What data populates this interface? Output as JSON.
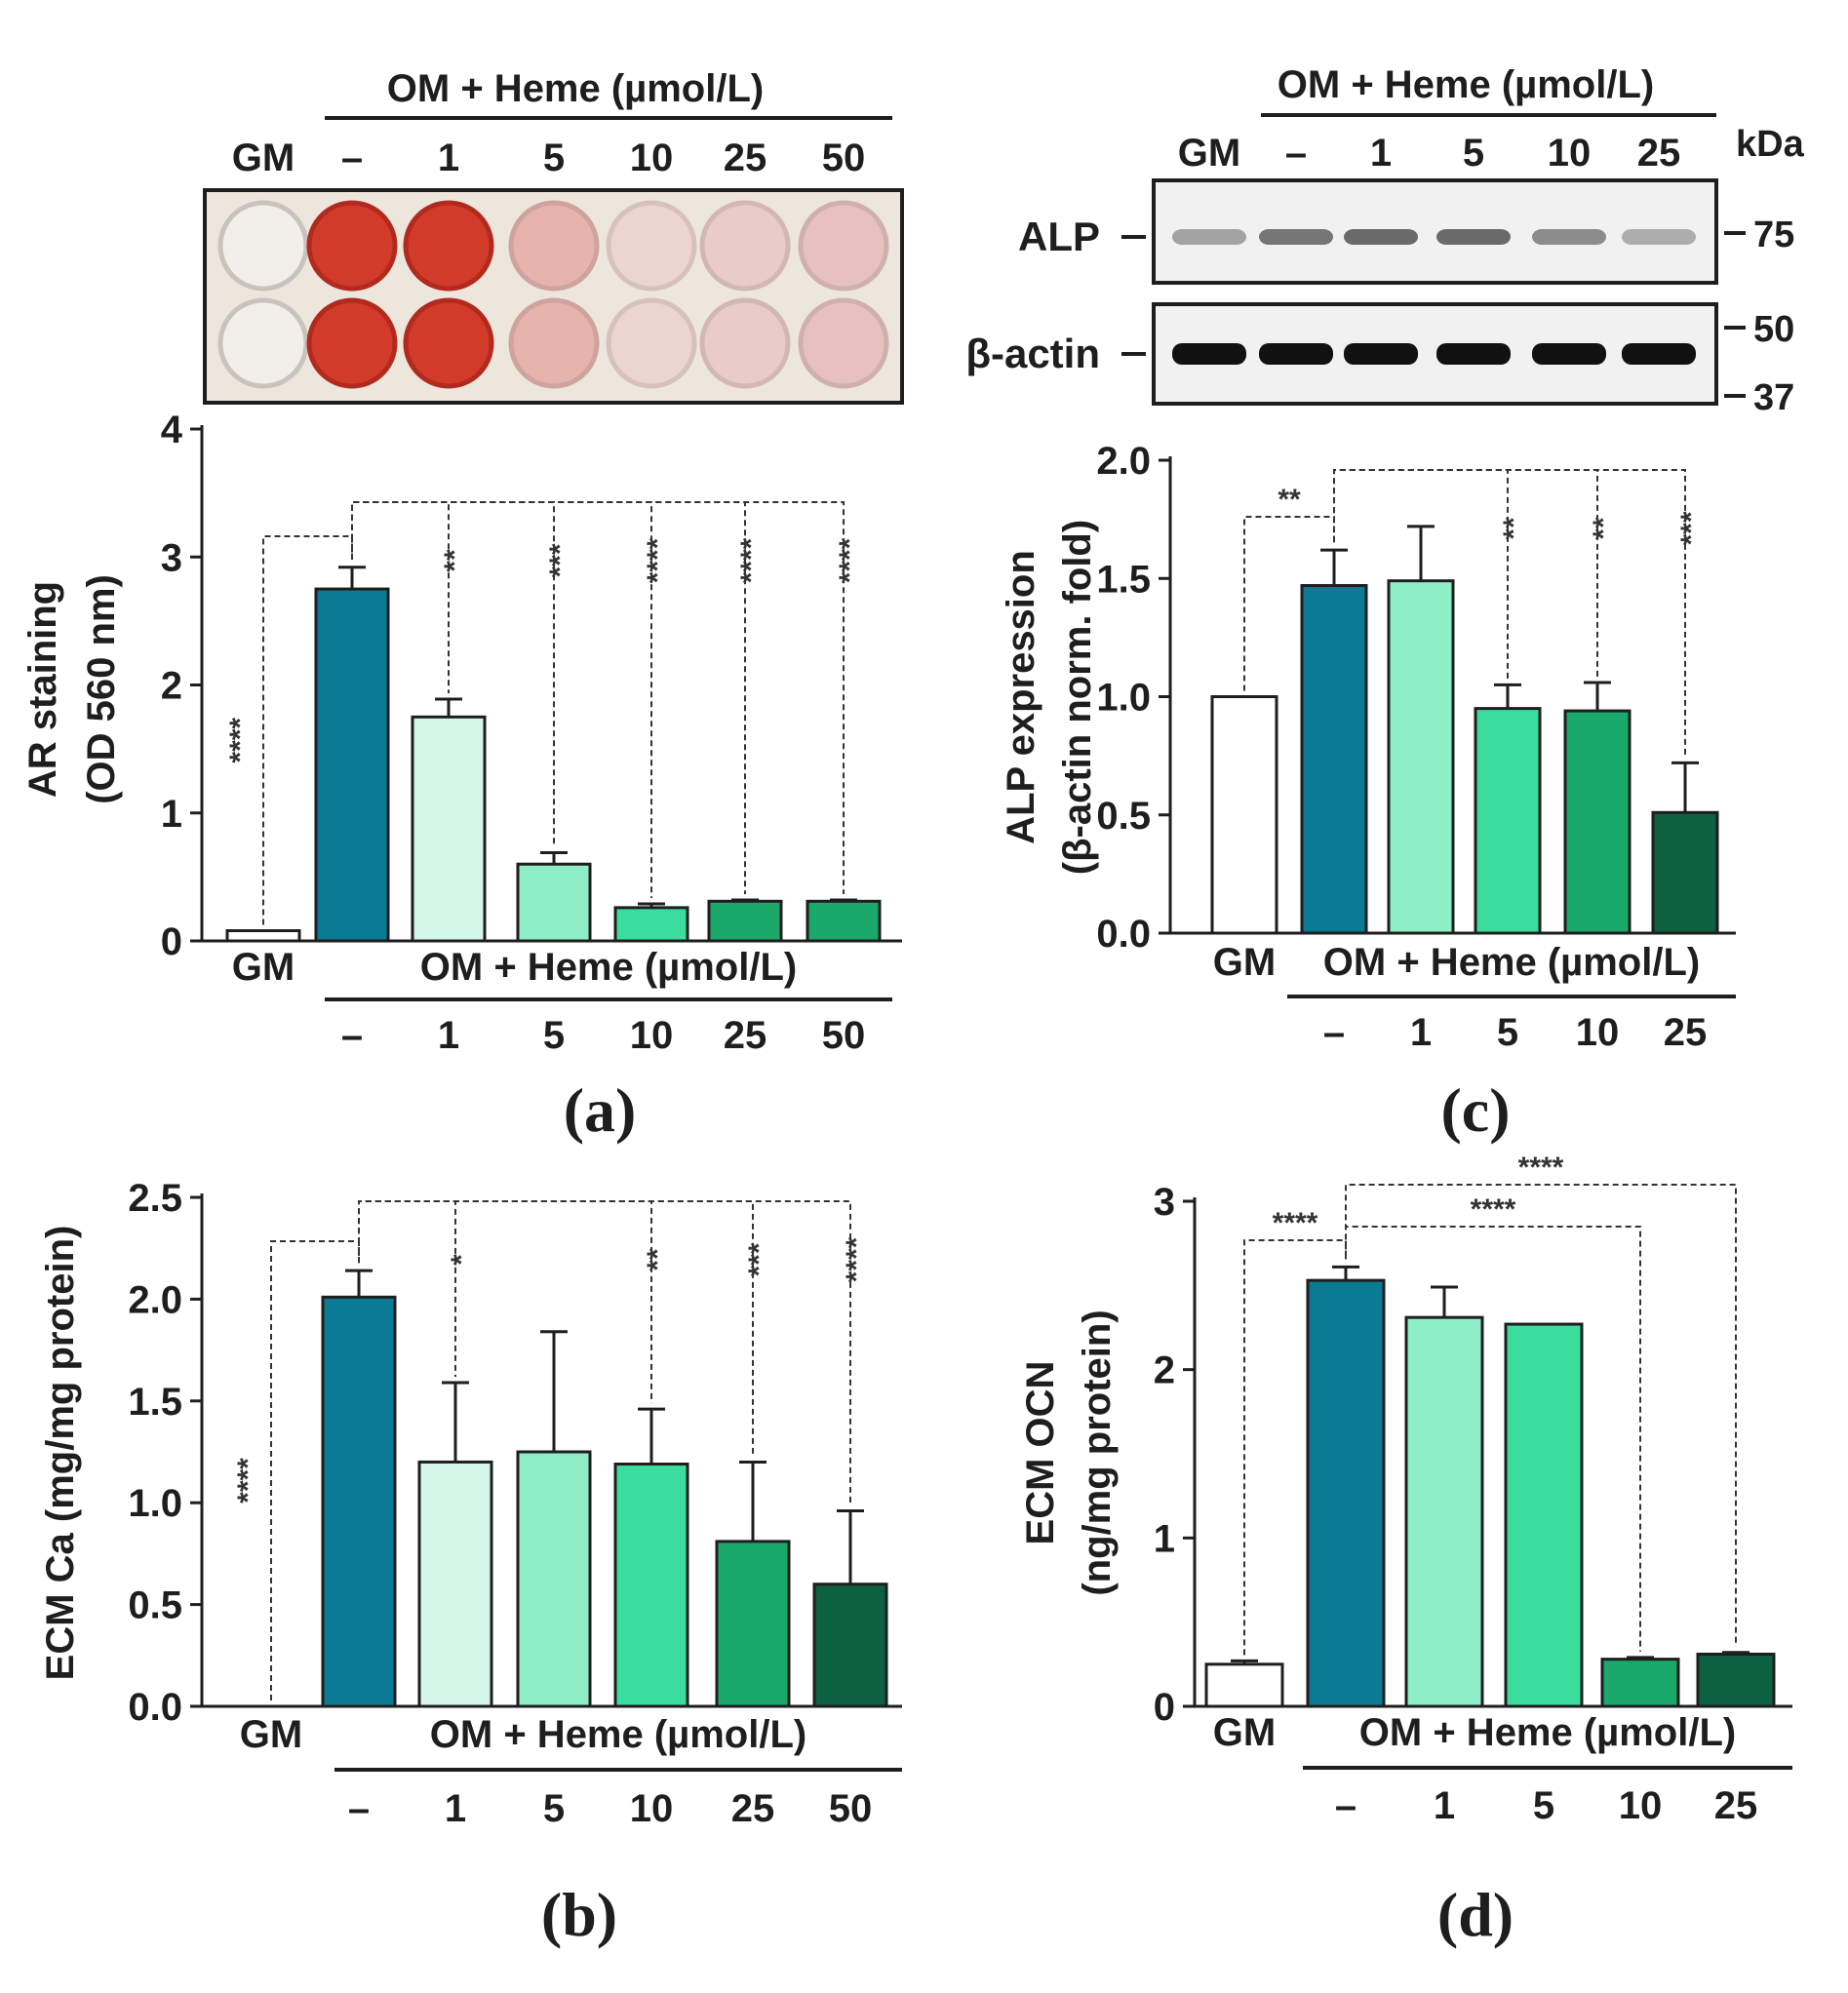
{
  "chart_data": [
    {
      "id": "a",
      "type": "bar",
      "panel_label": "(a)",
      "ylabel_lines": [
        "AR staining",
        "(OD 560 nm)"
      ],
      "ylim": [
        0,
        4
      ],
      "yticks": [
        "0",
        "1",
        "2",
        "3",
        "4"
      ],
      "yticks_values": [
        0,
        1,
        2,
        3,
        4
      ],
      "group_labels": [
        "GM",
        "OM + Heme (µmol/L)"
      ],
      "categories": [
        "GM",
        "–",
        "1",
        "5",
        "10",
        "25",
        "50"
      ],
      "values": [
        0.08,
        2.75,
        1.75,
        0.6,
        0.26,
        0.31,
        0.31
      ],
      "errors": [
        0.0,
        0.17,
        0.14,
        0.09,
        0.03,
        0.01,
        0.01
      ],
      "significance": [
        {
          "compare": "GM vs OM",
          "label": "****"
        },
        {
          "compare": "OM vs 1",
          "label": "**"
        },
        {
          "compare": "OM vs 5",
          "label": "***"
        },
        {
          "compare": "OM vs 10",
          "label": "****"
        },
        {
          "compare": "OM vs 25",
          "label": "****"
        },
        {
          "compare": "OM vs 50",
          "label": "****"
        }
      ],
      "image_header_group": "OM + Heme (µmol/L)",
      "image_header_labels": [
        "GM",
        "–",
        "1",
        "5",
        "10",
        "25",
        "50"
      ]
    },
    {
      "id": "b",
      "type": "bar",
      "panel_label": "(b)",
      "ylabel_lines": [
        "ECM Ca (mg/mg protein)"
      ],
      "ylim": [
        0,
        2.5
      ],
      "yticks": [
        "0.0",
        "0.5",
        "1.0",
        "1.5",
        "2.0",
        "2.5"
      ],
      "yticks_values": [
        0,
        0.5,
        1.0,
        1.5,
        2.0,
        2.5
      ],
      "group_labels": [
        "GM",
        "OM + Heme (µmol/L)"
      ],
      "categories": [
        "GM",
        "–",
        "1",
        "5",
        "10",
        "25",
        "50"
      ],
      "values": [
        0.0,
        2.01,
        1.2,
        1.25,
        1.19,
        0.81,
        0.6
      ],
      "errors": [
        0.0,
        0.13,
        0.39,
        0.59,
        0.27,
        0.39,
        0.36
      ],
      "significance": [
        {
          "compare": "GM vs OM",
          "label": "****"
        },
        {
          "compare": "OM vs 1",
          "label": "*"
        },
        {
          "compare": "OM vs 10",
          "label": "**"
        },
        {
          "compare": "OM vs 25",
          "label": "***"
        },
        {
          "compare": "OM vs 50",
          "label": "****"
        }
      ]
    },
    {
      "id": "c",
      "type": "bar",
      "panel_label": "(c)",
      "ylabel_lines": [
        "ALP expression",
        "(β-actin norm. fold)"
      ],
      "ylim": [
        0,
        2.0
      ],
      "yticks": [
        "0.0",
        "0.5",
        "1.0",
        "1.5",
        "2.0"
      ],
      "yticks_values": [
        0,
        0.5,
        1.0,
        1.5,
        2.0
      ],
      "group_labels": [
        "GM",
        "OM + Heme (µmol/L)"
      ],
      "categories": [
        "GM",
        "–",
        "1",
        "5",
        "10",
        "25"
      ],
      "values": [
        1.0,
        1.47,
        1.49,
        0.95,
        0.94,
        0.51
      ],
      "errors": [
        0.0,
        0.15,
        0.23,
        0.1,
        0.12,
        0.21
      ],
      "significance": [
        {
          "compare": "GM vs OM",
          "label": "**"
        },
        {
          "compare": "OM vs 5",
          "label": "**"
        },
        {
          "compare": "OM vs 10",
          "label": "**"
        },
        {
          "compare": "OM vs 25",
          "label": "***"
        }
      ],
      "blot": {
        "header_group": "OM + Heme (µmol/L)",
        "lane_labels": [
          "GM",
          "–",
          "1",
          "5",
          "10",
          "25"
        ],
        "kda_label": "kDa",
        "rows": [
          {
            "name": "ALP",
            "markers": [
              "75"
            ],
            "intensity": [
              0.35,
              0.55,
              0.6,
              0.6,
              0.45,
              0.3
            ]
          },
          {
            "name": "β-actin",
            "markers": [
              "50",
              "37"
            ],
            "intensity": [
              1,
              1,
              1,
              1,
              1,
              1
            ]
          }
        ]
      }
    },
    {
      "id": "d",
      "type": "bar",
      "panel_label": "(d)",
      "ylabel_lines": [
        "ECM OCN",
        "(ng/mg protein)"
      ],
      "ylim": [
        0,
        3
      ],
      "yticks": [
        "0",
        "1",
        "2",
        "3"
      ],
      "yticks_values": [
        0,
        1,
        2,
        3
      ],
      "group_labels": [
        "GM",
        "OM + Heme (µmol/L)"
      ],
      "categories": [
        "GM",
        "–",
        "1",
        "5",
        "10",
        "25"
      ],
      "values": [
        0.25,
        2.53,
        2.31,
        2.27,
        0.28,
        0.31
      ],
      "errors": [
        0.02,
        0.08,
        0.18,
        0.0,
        0.01,
        0.01
      ],
      "significance": [
        {
          "compare": "GM vs OM",
          "label": "****"
        },
        {
          "compare": "OM vs 10",
          "label": "****"
        },
        {
          "compare": "OM vs 25",
          "label": "****"
        }
      ]
    }
  ],
  "colors": {
    "white": "#ffffff",
    "om": "#0b7a94",
    "h1_light": "#d4f7e9",
    "h1_mid": "#8eeec8",
    "h5": "#3bdd9c",
    "h10_25": "#1aa86b",
    "h50": "#0d6040",
    "stain_red": "#d23a2a",
    "ink": "#1e1e1e"
  }
}
